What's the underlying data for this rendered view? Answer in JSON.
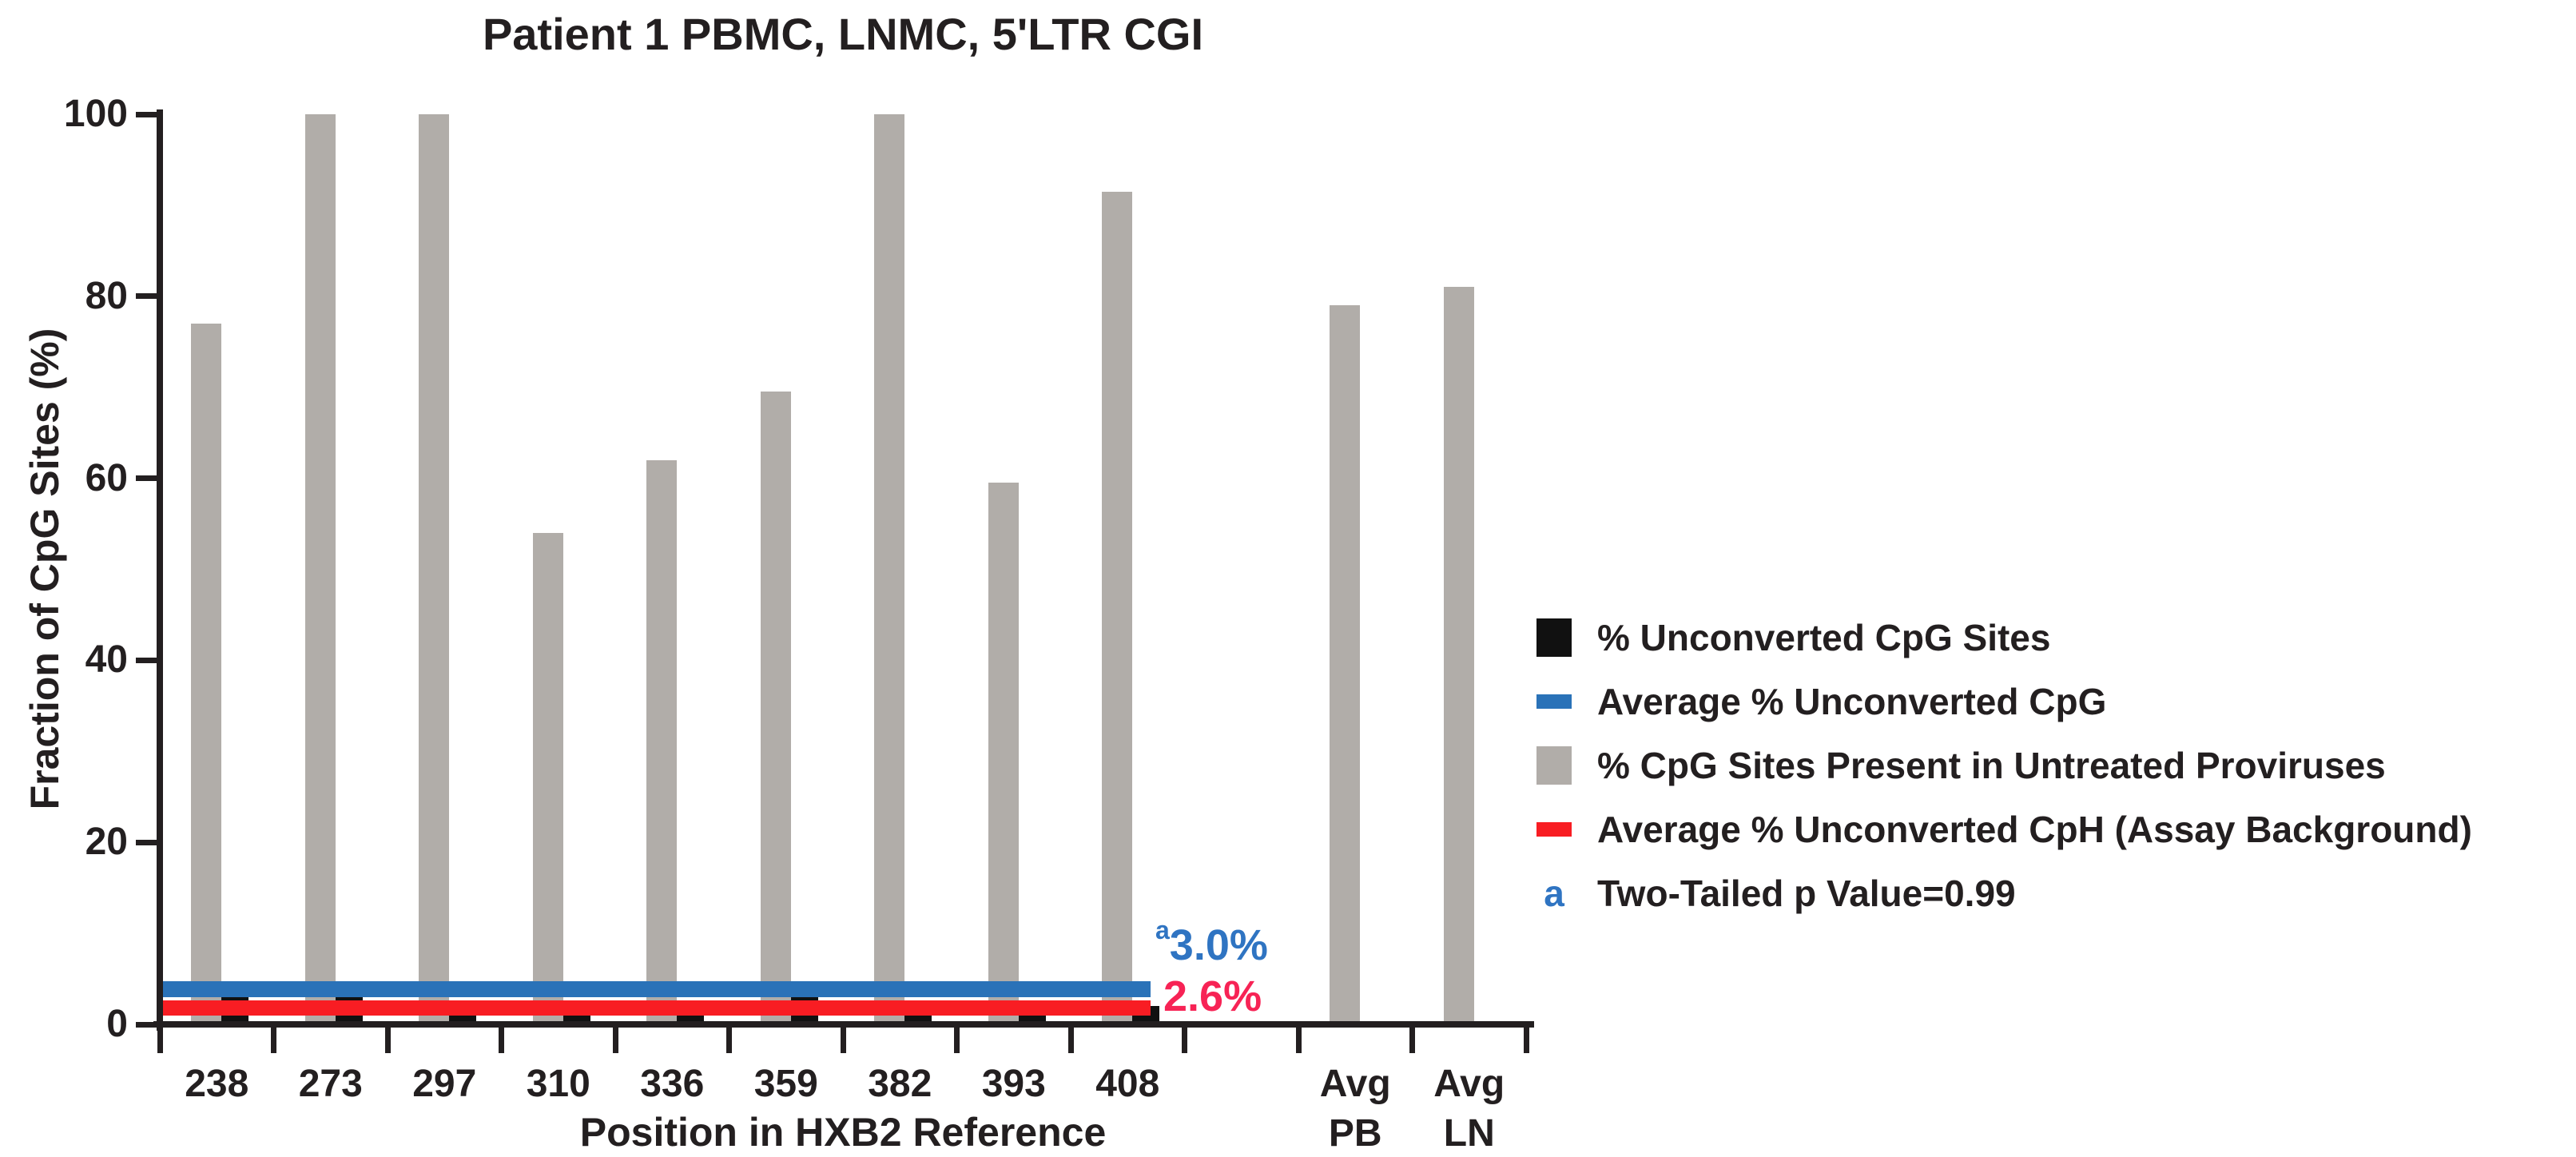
{
  "chart_data": {
    "type": "bar",
    "title": "Patient 1 PBMC, LNMC, 5'LTR CGI",
    "xlabel": "Position in HXB2 Reference",
    "ylabel": "Fraction of CpG Sites (%)",
    "ylim": [
      0,
      100
    ],
    "yticks": [
      0,
      20,
      40,
      60,
      80,
      100
    ],
    "grid": false,
    "legend_position": "right",
    "categories": [
      "238",
      "273",
      "297",
      "310",
      "336",
      "359",
      "382",
      "393",
      "408",
      "",
      "Avg PB",
      "Avg LN"
    ],
    "series": [
      {
        "name": "% CpG Sites Present in Untreated Proviruses",
        "type": "bar",
        "color": "#b1ada9",
        "values": [
          77,
          100,
          100,
          54,
          62,
          69.5,
          100,
          59.5,
          91.5,
          null,
          79,
          81
        ]
      },
      {
        "name": "% Unconverted CpG Sites",
        "type": "bar",
        "color": "#111111",
        "values": [
          3,
          3,
          2,
          2,
          2,
          3,
          2,
          2,
          2,
          null,
          null,
          null
        ]
      }
    ],
    "reference_lines": [
      {
        "name": "Average % Unconverted CpG",
        "value": 3.0,
        "label": "3.0%",
        "superscript": "a",
        "color": "#2a72b8",
        "label_color": "#2f74c2"
      },
      {
        "name": "Average % Unconverted CpH (Assay Background)",
        "value": 2.6,
        "label": "2.6%",
        "superscript": "",
        "color": "#f81d23",
        "label_color": "#f72355"
      }
    ],
    "footnote": {
      "marker": "a",
      "text": "Two-Tailed p Value=0.99"
    }
  },
  "legend": {
    "items": [
      {
        "swatch": "black-square",
        "label": "% Unconverted CpG Sites"
      },
      {
        "swatch": "blue-bar",
        "label": "Average % Unconverted CpG"
      },
      {
        "swatch": "gray-square",
        "label": "% CpG Sites Present in Untreated Proviruses"
      },
      {
        "swatch": "red-bar",
        "label": "Average % Unconverted CpH (Assay Background)"
      },
      {
        "swatch": "letter-a",
        "marker": "a",
        "label": "Two-Tailed p Value=0.99"
      }
    ]
  },
  "colors": {
    "gray": "#b1ada9",
    "black": "#111111",
    "blue": "#2a72b8",
    "red": "#f81d23",
    "blue_text": "#2f74c2",
    "red_text": "#f72355",
    "axis": "#231f20"
  }
}
